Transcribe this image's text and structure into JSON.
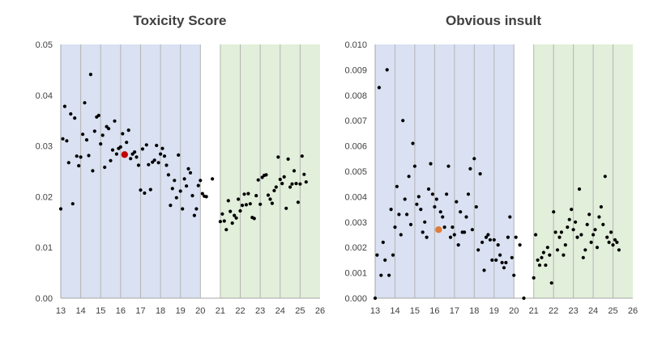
{
  "chart_data": [
    {
      "type": "scatter",
      "title": "Toxicity Score",
      "xlim": [
        13,
        26
      ],
      "ylim": [
        0,
        0.05
      ],
      "xticks": [
        "13",
        "14",
        "15",
        "16",
        "17",
        "18",
        "19",
        "20",
        "21",
        "22",
        "23",
        "24",
        "25",
        "26"
      ],
      "yticks": [
        "0.00",
        "0.01",
        "0.02",
        "0.03",
        "0.04",
        "0.05"
      ],
      "grid": "vertical",
      "bands": [
        {
          "from": 13,
          "to": 20,
          "color": "#d9e1f2"
        },
        {
          "from": 21,
          "to": 26,
          "color": "#e2efda"
        }
      ],
      "colors": {
        "points": "#000000",
        "highlight": "#c00000"
      },
      "highlight": {
        "x": 16.2,
        "y": 0.0283
      },
      "points": [
        [
          13.0,
          0.0176
        ],
        [
          13.1,
          0.0314
        ],
        [
          13.2,
          0.0378
        ],
        [
          13.3,
          0.031
        ],
        [
          13.4,
          0.0267
        ],
        [
          13.5,
          0.0363
        ],
        [
          13.6,
          0.0186
        ],
        [
          13.7,
          0.0355
        ],
        [
          13.8,
          0.028
        ],
        [
          13.9,
          0.0261
        ],
        [
          14.0,
          0.0278
        ],
        [
          14.1,
          0.0323
        ],
        [
          14.2,
          0.0385
        ],
        [
          14.3,
          0.0312
        ],
        [
          14.4,
          0.0281
        ],
        [
          14.5,
          0.0441
        ],
        [
          14.6,
          0.0251
        ],
        [
          14.7,
          0.0329
        ],
        [
          14.8,
          0.0357
        ],
        [
          14.9,
          0.036
        ],
        [
          15.0,
          0.0304
        ],
        [
          15.1,
          0.0321
        ],
        [
          15.2,
          0.0258
        ],
        [
          15.3,
          0.0338
        ],
        [
          15.4,
          0.0334
        ],
        [
          15.5,
          0.0271
        ],
        [
          15.6,
          0.0292
        ],
        [
          15.7,
          0.0349
        ],
        [
          15.8,
          0.0284
        ],
        [
          15.9,
          0.0295
        ],
        [
          16.0,
          0.0298
        ],
        [
          16.1,
          0.0324
        ],
        [
          16.3,
          0.0307
        ],
        [
          16.4,
          0.0331
        ],
        [
          16.5,
          0.0275
        ],
        [
          16.6,
          0.0284
        ],
        [
          16.7,
          0.0288
        ],
        [
          16.8,
          0.0278
        ],
        [
          16.9,
          0.0262
        ],
        [
          17.0,
          0.0213
        ],
        [
          17.1,
          0.0294
        ],
        [
          17.2,
          0.0207
        ],
        [
          17.3,
          0.0302
        ],
        [
          17.4,
          0.0263
        ],
        [
          17.5,
          0.0214
        ],
        [
          17.6,
          0.0268
        ],
        [
          17.7,
          0.0272
        ],
        [
          17.8,
          0.0301
        ],
        [
          17.9,
          0.0267
        ],
        [
          18.0,
          0.0284
        ],
        [
          18.1,
          0.0295
        ],
        [
          18.2,
          0.028
        ],
        [
          18.3,
          0.0262
        ],
        [
          18.4,
          0.0243
        ],
        [
          18.5,
          0.0183
        ],
        [
          18.6,
          0.0216
        ],
        [
          18.7,
          0.0232
        ],
        [
          18.8,
          0.0198
        ],
        [
          18.9,
          0.0282
        ],
        [
          19.0,
          0.0211
        ],
        [
          19.1,
          0.0176
        ],
        [
          19.2,
          0.0235
        ],
        [
          19.3,
          0.0221
        ],
        [
          19.4,
          0.0255
        ],
        [
          19.5,
          0.0247
        ],
        [
          19.6,
          0.0202
        ],
        [
          19.7,
          0.0163
        ],
        [
          19.8,
          0.0176
        ],
        [
          19.9,
          0.0222
        ],
        [
          20.0,
          0.0232
        ],
        [
          20.1,
          0.0206
        ],
        [
          20.2,
          0.0201
        ],
        [
          20.3,
          0.02
        ],
        [
          20.6,
          0.0235
        ],
        [
          21.0,
          0.0151
        ],
        [
          21.1,
          0.0166
        ],
        [
          21.2,
          0.0152
        ],
        [
          21.3,
          0.0135
        ],
        [
          21.4,
          0.0192
        ],
        [
          21.5,
          0.0171
        ],
        [
          21.6,
          0.0148
        ],
        [
          21.7,
          0.0163
        ],
        [
          21.8,
          0.0158
        ],
        [
          21.9,
          0.0195
        ],
        [
          22.0,
          0.0172
        ],
        [
          22.1,
          0.0183
        ],
        [
          22.2,
          0.0205
        ],
        [
          22.3,
          0.0184
        ],
        [
          22.4,
          0.0206
        ],
        [
          22.5,
          0.0186
        ],
        [
          22.6,
          0.0159
        ],
        [
          22.7,
          0.0157
        ],
        [
          22.8,
          0.0202
        ],
        [
          22.9,
          0.0233
        ],
        [
          23.0,
          0.0185
        ],
        [
          23.1,
          0.0238
        ],
        [
          23.2,
          0.0242
        ],
        [
          23.3,
          0.0243
        ],
        [
          23.4,
          0.0203
        ],
        [
          23.5,
          0.0195
        ],
        [
          23.6,
          0.0187
        ],
        [
          23.7,
          0.0212
        ],
        [
          23.8,
          0.0219
        ],
        [
          23.9,
          0.0278
        ],
        [
          24.0,
          0.0234
        ],
        [
          24.1,
          0.0226
        ],
        [
          24.2,
          0.0239
        ],
        [
          24.3,
          0.0177
        ],
        [
          24.4,
          0.0274
        ],
        [
          24.5,
          0.0219
        ],
        [
          24.6,
          0.0225
        ],
        [
          24.7,
          0.0251
        ],
        [
          24.8,
          0.0226
        ],
        [
          24.9,
          0.0189
        ],
        [
          25.0,
          0.0225
        ],
        [
          25.1,
          0.028
        ],
        [
          25.2,
          0.0244
        ],
        [
          25.3,
          0.0229
        ]
      ]
    },
    {
      "type": "scatter",
      "title": "Obvious insult",
      "xlim": [
        13,
        26
      ],
      "ylim": [
        0,
        0.01
      ],
      "xticks": [
        "13",
        "14",
        "15",
        "16",
        "17",
        "18",
        "19",
        "20",
        "21",
        "22",
        "23",
        "24",
        "25",
        "26"
      ],
      "yticks": [
        "0.000",
        "0.001",
        "0.002",
        "0.003",
        "0.004",
        "0.005",
        "0.006",
        "0.007",
        "0.008",
        "0.009",
        "0.010"
      ],
      "grid": "vertical",
      "bands": [
        {
          "from": 13,
          "to": 20,
          "color": "#d9e1f2"
        },
        {
          "from": 21,
          "to": 26,
          "color": "#e2efda"
        }
      ],
      "colors": {
        "points": "#000000",
        "highlight": "#e07b39"
      },
      "highlight": {
        "x": 16.2,
        "y": 0.0027
      },
      "points": [
        [
          13.0,
          0.0
        ],
        [
          13.1,
          0.0017
        ],
        [
          13.2,
          0.0083
        ],
        [
          13.3,
          0.0009
        ],
        [
          13.4,
          0.0022
        ],
        [
          13.5,
          0.0015
        ],
        [
          13.6,
          0.009
        ],
        [
          13.7,
          0.0009
        ],
        [
          13.8,
          0.0035
        ],
        [
          13.9,
          0.0017
        ],
        [
          14.0,
          0.0028
        ],
        [
          14.1,
          0.0044
        ],
        [
          14.2,
          0.0033
        ],
        [
          14.3,
          0.0025
        ],
        [
          14.4,
          0.007
        ],
        [
          14.5,
          0.0039
        ],
        [
          14.6,
          0.0033
        ],
        [
          14.7,
          0.0048
        ],
        [
          14.8,
          0.0029
        ],
        [
          14.9,
          0.0061
        ],
        [
          15.0,
          0.0052
        ],
        [
          15.1,
          0.0037
        ],
        [
          15.2,
          0.004
        ],
        [
          15.3,
          0.0035
        ],
        [
          15.4,
          0.0026
        ],
        [
          15.5,
          0.003
        ],
        [
          15.6,
          0.0024
        ],
        [
          15.7,
          0.0043
        ],
        [
          15.8,
          0.0053
        ],
        [
          15.9,
          0.0041
        ],
        [
          16.0,
          0.0036
        ],
        [
          16.1,
          0.0039
        ],
        [
          16.3,
          0.0034
        ],
        [
          16.4,
          0.0032
        ],
        [
          16.5,
          0.0028
        ],
        [
          16.6,
          0.0041
        ],
        [
          16.7,
          0.0052
        ],
        [
          16.8,
          0.0024
        ],
        [
          16.9,
          0.0028
        ],
        [
          17.0,
          0.0025
        ],
        [
          17.1,
          0.0038
        ],
        [
          17.2,
          0.0021
        ],
        [
          17.3,
          0.0034
        ],
        [
          17.4,
          0.0026
        ],
        [
          17.5,
          0.0026
        ],
        [
          17.6,
          0.0032
        ],
        [
          17.7,
          0.0041
        ],
        [
          17.8,
          0.0051
        ],
        [
          17.9,
          0.0027
        ],
        [
          18.0,
          0.0055
        ],
        [
          18.1,
          0.0036
        ],
        [
          18.2,
          0.0019
        ],
        [
          18.3,
          0.0049
        ],
        [
          18.4,
          0.0022
        ],
        [
          18.5,
          0.0011
        ],
        [
          18.6,
          0.0024
        ],
        [
          18.7,
          0.0025
        ],
        [
          18.8,
          0.0023
        ],
        [
          18.9,
          0.0015
        ],
        [
          19.0,
          0.0023
        ],
        [
          19.1,
          0.0015
        ],
        [
          19.2,
          0.0021
        ],
        [
          19.3,
          0.0017
        ],
        [
          19.4,
          0.0014
        ],
        [
          19.5,
          0.0012
        ],
        [
          19.6,
          0.0014
        ],
        [
          19.7,
          0.0024
        ],
        [
          19.8,
          0.0032
        ],
        [
          19.9,
          0.0016
        ],
        [
          20.0,
          0.0009
        ],
        [
          20.1,
          0.0024
        ],
        [
          20.3,
          0.0021
        ],
        [
          20.5,
          0.0
        ],
        [
          21.0,
          0.0008
        ],
        [
          21.1,
          0.0025
        ],
        [
          21.2,
          0.0015
        ],
        [
          21.3,
          0.0013
        ],
        [
          21.4,
          0.0016
        ],
        [
          21.5,
          0.0018
        ],
        [
          21.6,
          0.0013
        ],
        [
          21.7,
          0.002
        ],
        [
          21.8,
          0.0017
        ],
        [
          21.9,
          0.0006
        ],
        [
          22.0,
          0.0034
        ],
        [
          22.1,
          0.0026
        ],
        [
          22.2,
          0.0019
        ],
        [
          22.3,
          0.0024
        ],
        [
          22.4,
          0.0026
        ],
        [
          22.5,
          0.0017
        ],
        [
          22.6,
          0.0021
        ],
        [
          22.7,
          0.0028
        ],
        [
          22.8,
          0.0031
        ],
        [
          22.9,
          0.0035
        ],
        [
          23.0,
          0.0027
        ],
        [
          23.1,
          0.003
        ],
        [
          23.2,
          0.0024
        ],
        [
          23.3,
          0.0043
        ],
        [
          23.4,
          0.0025
        ],
        [
          23.5,
          0.0016
        ],
        [
          23.6,
          0.0019
        ],
        [
          23.7,
          0.0029
        ],
        [
          23.8,
          0.0033
        ],
        [
          23.9,
          0.0022
        ],
        [
          24.0,
          0.0025
        ],
        [
          24.1,
          0.0027
        ],
        [
          24.2,
          0.002
        ],
        [
          24.3,
          0.0032
        ],
        [
          24.4,
          0.0036
        ],
        [
          24.5,
          0.0029
        ],
        [
          24.6,
          0.0048
        ],
        [
          24.7,
          0.0024
        ],
        [
          24.8,
          0.0022
        ],
        [
          24.9,
          0.0026
        ],
        [
          25.0,
          0.0021
        ],
        [
          25.1,
          0.0023
        ],
        [
          25.2,
          0.0022
        ],
        [
          25.3,
          0.0019
        ]
      ]
    }
  ]
}
